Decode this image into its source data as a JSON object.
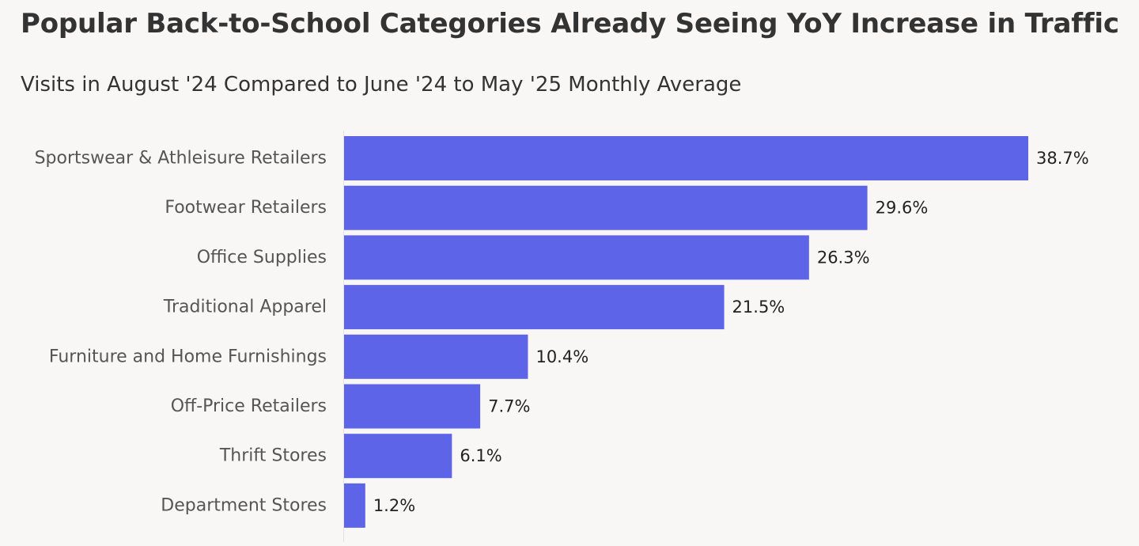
{
  "chart_data": {
    "type": "bar",
    "orientation": "horizontal",
    "title": "Popular Back-to-School Categories Already Seeing YoY Increase in Traffic",
    "subtitle": "Visits in August '24 Compared to June '24 to May '25 Monthly Average",
    "categories": [
      "Sportswear & Athleisure Retailers",
      "Footwear Retailers",
      "Office Supplies",
      "Traditional Apparel",
      "Furniture and Home Furnishings",
      "Off-Price Retailers",
      "Thrift Stores",
      "Department Stores"
    ],
    "values": [
      38.7,
      29.6,
      26.3,
      21.5,
      10.4,
      7.7,
      6.1,
      1.2
    ],
    "value_labels": [
      "38.7%",
      "29.6%",
      "26.3%",
      "21.5%",
      "10.4%",
      "7.7%",
      "6.1%",
      "1.2%"
    ],
    "xlim": [
      0,
      38.7
    ],
    "grid": false,
    "legend": "none",
    "bar_color": "#5e64e8",
    "background_color": "#f8f7f6"
  }
}
